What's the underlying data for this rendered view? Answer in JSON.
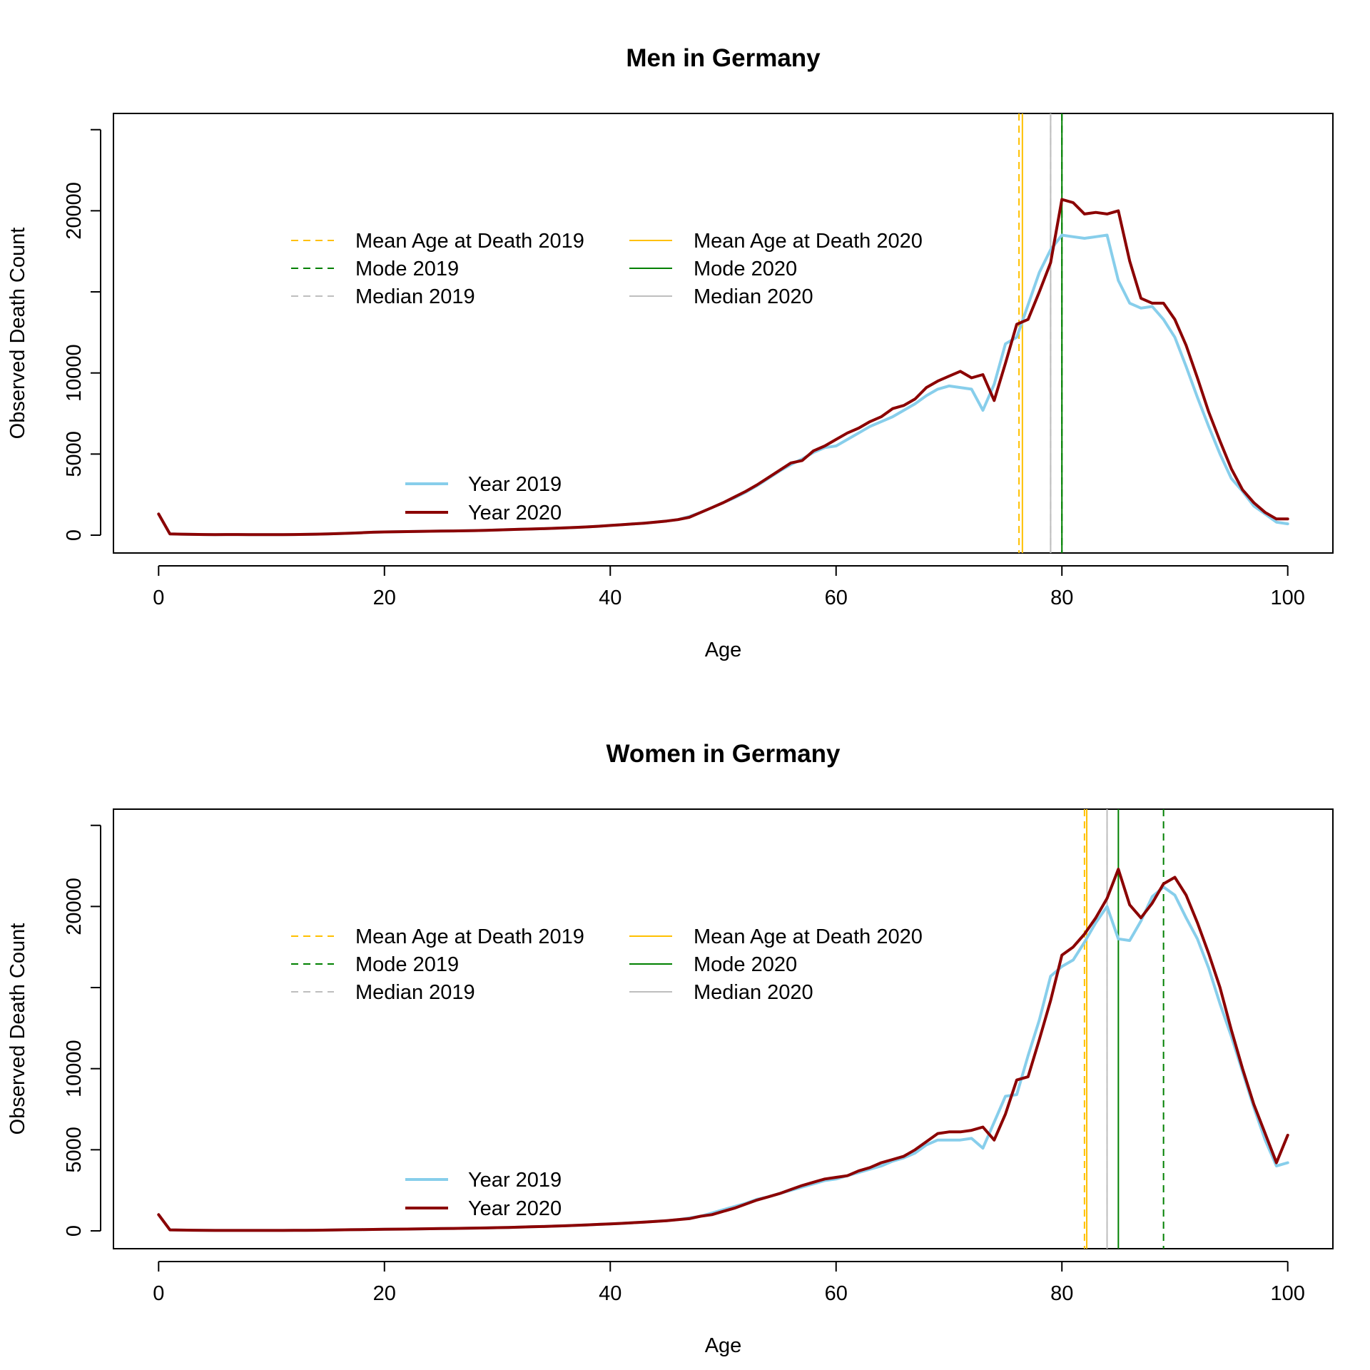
{
  "chart_data": [
    {
      "type": "line",
      "title": "Men in Germany",
      "xlabel": "Age",
      "ylabel": "Observed Death Count",
      "xlim": [
        -4,
        104
      ],
      "ylim": [
        -1100,
        26000
      ],
      "x_ticks": [
        0,
        20,
        40,
        60,
        80,
        100
      ],
      "y_ticks": [
        0,
        5000,
        10000,
        15000,
        20000,
        25000
      ],
      "y_tick_labels": [
        "0",
        "5000",
        "10000",
        "",
        "20000",
        ""
      ],
      "series": [
        {
          "name": "Year 2019",
          "color": "#87CEEB",
          "x": [
            0,
            1,
            2,
            3,
            4,
            5,
            6,
            7,
            8,
            9,
            10,
            11,
            12,
            13,
            14,
            15,
            16,
            17,
            18,
            19,
            20,
            21,
            22,
            23,
            24,
            25,
            26,
            27,
            28,
            29,
            30,
            31,
            32,
            33,
            34,
            35,
            36,
            37,
            38,
            39,
            40,
            41,
            42,
            43,
            44,
            45,
            46,
            47,
            48,
            49,
            50,
            51,
            52,
            53,
            54,
            55,
            56,
            57,
            58,
            59,
            60,
            61,
            62,
            63,
            64,
            65,
            66,
            67,
            68,
            69,
            70,
            71,
            72,
            73,
            74,
            75,
            76,
            77,
            78,
            79,
            80,
            81,
            82,
            83,
            84,
            85,
            86,
            87,
            88,
            89,
            90,
            91,
            92,
            93,
            94,
            95,
            96,
            97,
            98,
            99,
            100
          ],
          "y": [
            1300,
            80,
            60,
            50,
            40,
            30,
            40,
            40,
            30,
            30,
            30,
            30,
            40,
            50,
            60,
            80,
            100,
            120,
            150,
            180,
            200,
            210,
            220,
            230,
            240,
            250,
            260,
            270,
            280,
            300,
            320,
            340,
            360,
            380,
            400,
            420,
            450,
            480,
            510,
            550,
            600,
            640,
            690,
            740,
            800,
            870,
            960,
            1150,
            1400,
            1700,
            2000,
            2300,
            2650,
            3050,
            3500,
            3950,
            4350,
            4700,
            5100,
            5400,
            5500,
            5900,
            6300,
            6700,
            7000,
            7300,
            7700,
            8100,
            8600,
            9000,
            9200,
            9100,
            9000,
            7700,
            9300,
            11800,
            12200,
            14200,
            16200,
            17600,
            18500,
            18400,
            18300,
            18400,
            18500,
            15700,
            14300,
            14000,
            14100,
            13300,
            12200,
            10400,
            8500,
            6700,
            5000,
            3500,
            2700,
            1800,
            1300,
            800,
            700
          ]
        },
        {
          "name": "Year 2020",
          "color": "#8B0000",
          "x": [
            0,
            1,
            2,
            3,
            4,
            5,
            6,
            7,
            8,
            9,
            10,
            11,
            12,
            13,
            14,
            15,
            16,
            17,
            18,
            19,
            20,
            21,
            22,
            23,
            24,
            25,
            26,
            27,
            28,
            29,
            30,
            31,
            32,
            33,
            34,
            35,
            36,
            37,
            38,
            39,
            40,
            41,
            42,
            43,
            44,
            45,
            46,
            47,
            48,
            49,
            50,
            51,
            52,
            53,
            54,
            55,
            56,
            57,
            58,
            59,
            60,
            61,
            62,
            63,
            64,
            65,
            66,
            67,
            68,
            69,
            70,
            71,
            72,
            73,
            74,
            75,
            76,
            77,
            78,
            79,
            80,
            81,
            82,
            83,
            84,
            85,
            86,
            87,
            88,
            89,
            90,
            91,
            92,
            93,
            94,
            95,
            96,
            97,
            98,
            99,
            100
          ],
          "y": [
            1300,
            80,
            60,
            50,
            40,
            30,
            40,
            40,
            30,
            30,
            30,
            30,
            40,
            50,
            60,
            80,
            100,
            120,
            150,
            180,
            200,
            210,
            220,
            230,
            240,
            250,
            260,
            270,
            280,
            300,
            320,
            340,
            360,
            380,
            400,
            420,
            450,
            480,
            510,
            550,
            600,
            640,
            690,
            740,
            800,
            870,
            960,
            1100,
            1400,
            1700,
            2000,
            2350,
            2700,
            3100,
            3550,
            4000,
            4450,
            4600,
            5200,
            5500,
            5900,
            6300,
            6600,
            7000,
            7300,
            7800,
            8000,
            8400,
            9100,
            9500,
            9800,
            10100,
            9700,
            9900,
            8300,
            10600,
            13000,
            13300,
            15000,
            16800,
            20700,
            20500,
            19800,
            19900,
            19800,
            20000,
            16900,
            14600,
            14300,
            14300,
            13300,
            11700,
            9700,
            7600,
            5800,
            4100,
            2800,
            2000,
            1400,
            1000,
            1000
          ]
        }
      ],
      "vlines": [
        {
          "label": "Mean Age at Death 2019",
          "x": 76.2,
          "color": "#FFC000",
          "dashed": true
        },
        {
          "label": "Mean Age at Death 2020",
          "x": 76.5,
          "color": "#FFC000",
          "dashed": false
        },
        {
          "label": "Mode 2019",
          "x": 80,
          "color": "#008000",
          "dashed": true
        },
        {
          "label": "Mode 2020",
          "x": 80,
          "color": "#008000",
          "dashed": false
        },
        {
          "label": "Median 2019",
          "x": 79,
          "color": "#BEBEBE",
          "dashed": true
        },
        {
          "label": "Median 2020",
          "x": 79,
          "color": "#BEBEBE",
          "dashed": false
        }
      ],
      "grid": false,
      "legend_placement": "top-left (reference lines, two columns); bottom-left (years)"
    },
    {
      "type": "line",
      "title": "Women in Germany",
      "xlabel": "Age",
      "ylabel": "Observed Death Count",
      "xlim": [
        -4,
        104
      ],
      "ylim": [
        -1100,
        26000
      ],
      "x_ticks": [
        0,
        20,
        40,
        60,
        80,
        100
      ],
      "y_ticks": [
        0,
        5000,
        10000,
        15000,
        20000,
        25000
      ],
      "y_tick_labels": [
        "0",
        "5000",
        "10000",
        "",
        "20000",
        ""
      ],
      "series": [
        {
          "name": "Year 2019",
          "color": "#87CEEB",
          "x": [
            0,
            1,
            2,
            3,
            4,
            5,
            6,
            7,
            8,
            9,
            10,
            11,
            12,
            13,
            14,
            15,
            16,
            17,
            18,
            19,
            20,
            21,
            22,
            23,
            24,
            25,
            26,
            27,
            28,
            29,
            30,
            31,
            32,
            33,
            34,
            35,
            36,
            37,
            38,
            39,
            40,
            41,
            42,
            43,
            44,
            45,
            46,
            47,
            48,
            49,
            50,
            51,
            52,
            53,
            54,
            55,
            56,
            57,
            58,
            59,
            60,
            61,
            62,
            63,
            64,
            65,
            66,
            67,
            68,
            69,
            70,
            71,
            72,
            73,
            74,
            75,
            76,
            77,
            78,
            79,
            80,
            81,
            82,
            83,
            84,
            85,
            86,
            87,
            88,
            89,
            90,
            91,
            92,
            93,
            94,
            95,
            96,
            97,
            98,
            99,
            100
          ],
          "y": [
            1000,
            60,
            50,
            40,
            30,
            25,
            25,
            25,
            25,
            25,
            25,
            25,
            30,
            35,
            40,
            50,
            60,
            70,
            80,
            90,
            100,
            105,
            110,
            120,
            130,
            140,
            150,
            160,
            170,
            180,
            200,
            210,
            230,
            250,
            270,
            290,
            310,
            340,
            370,
            400,
            430,
            460,
            500,
            540,
            580,
            630,
            690,
            800,
            900,
            1100,
            1300,
            1500,
            1700,
            1950,
            2100,
            2300,
            2500,
            2700,
            2900,
            3100,
            3200,
            3400,
            3600,
            3800,
            4000,
            4300,
            4500,
            4800,
            5300,
            5600,
            5600,
            5600,
            5700,
            5100,
            6700,
            8300,
            8400,
            10800,
            13000,
            15700,
            16300,
            16700,
            17800,
            19000,
            20000,
            18000,
            17900,
            19100,
            20600,
            21200,
            20700,
            19300,
            18000,
            16200,
            14000,
            12000,
            9800,
            7600,
            5600,
            4000,
            4200
          ]
        },
        {
          "name": "Year 2020",
          "color": "#8B0000",
          "x": [
            0,
            1,
            2,
            3,
            4,
            5,
            6,
            7,
            8,
            9,
            10,
            11,
            12,
            13,
            14,
            15,
            16,
            17,
            18,
            19,
            20,
            21,
            22,
            23,
            24,
            25,
            26,
            27,
            28,
            29,
            30,
            31,
            32,
            33,
            34,
            35,
            36,
            37,
            38,
            39,
            40,
            41,
            42,
            43,
            44,
            45,
            46,
            47,
            48,
            49,
            50,
            51,
            52,
            53,
            54,
            55,
            56,
            57,
            58,
            59,
            60,
            61,
            62,
            63,
            64,
            65,
            66,
            67,
            68,
            69,
            70,
            71,
            72,
            73,
            74,
            75,
            76,
            77,
            78,
            79,
            80,
            81,
            82,
            83,
            84,
            85,
            86,
            87,
            88,
            89,
            90,
            91,
            92,
            93,
            94,
            95,
            96,
            97,
            98,
            99,
            100
          ],
          "y": [
            1000,
            60,
            50,
            40,
            30,
            25,
            25,
            25,
            25,
            25,
            25,
            25,
            30,
            35,
            40,
            50,
            60,
            70,
            80,
            90,
            100,
            105,
            110,
            120,
            130,
            140,
            150,
            160,
            170,
            180,
            200,
            210,
            230,
            250,
            270,
            290,
            310,
            340,
            370,
            400,
            430,
            460,
            500,
            540,
            580,
            630,
            690,
            750,
            900,
            1000,
            1200,
            1400,
            1650,
            1900,
            2100,
            2300,
            2550,
            2800,
            3000,
            3200,
            3300,
            3400,
            3700,
            3900,
            4200,
            4400,
            4600,
            5000,
            5500,
            6000,
            6100,
            6100,
            6200,
            6400,
            5600,
            7200,
            9300,
            9500,
            11800,
            14200,
            17000,
            17500,
            18300,
            19300,
            20500,
            22300,
            20100,
            19300,
            20200,
            21400,
            21800,
            20700,
            19000,
            17100,
            15000,
            12400,
            10000,
            7800,
            6000,
            4200,
            5900
          ]
        }
      ],
      "vlines": [
        {
          "label": "Mean Age at Death 2019",
          "x": 82.0,
          "color": "#FFC000",
          "dashed": true
        },
        {
          "label": "Mean Age at Death 2020",
          "x": 82.2,
          "color": "#FFC000",
          "dashed": false
        },
        {
          "label": "Mode 2019",
          "x": 89,
          "color": "#008000",
          "dashed": true
        },
        {
          "label": "Mode 2020",
          "x": 85,
          "color": "#008000",
          "dashed": false
        },
        {
          "label": "Median 2019",
          "x": 84,
          "color": "#BEBEBE",
          "dashed": true
        },
        {
          "label": "Median 2020",
          "x": 84,
          "color": "#BEBEBE",
          "dashed": false
        }
      ],
      "grid": false,
      "legend_placement": "top-left (reference lines, two columns); bottom-left (years)"
    }
  ]
}
